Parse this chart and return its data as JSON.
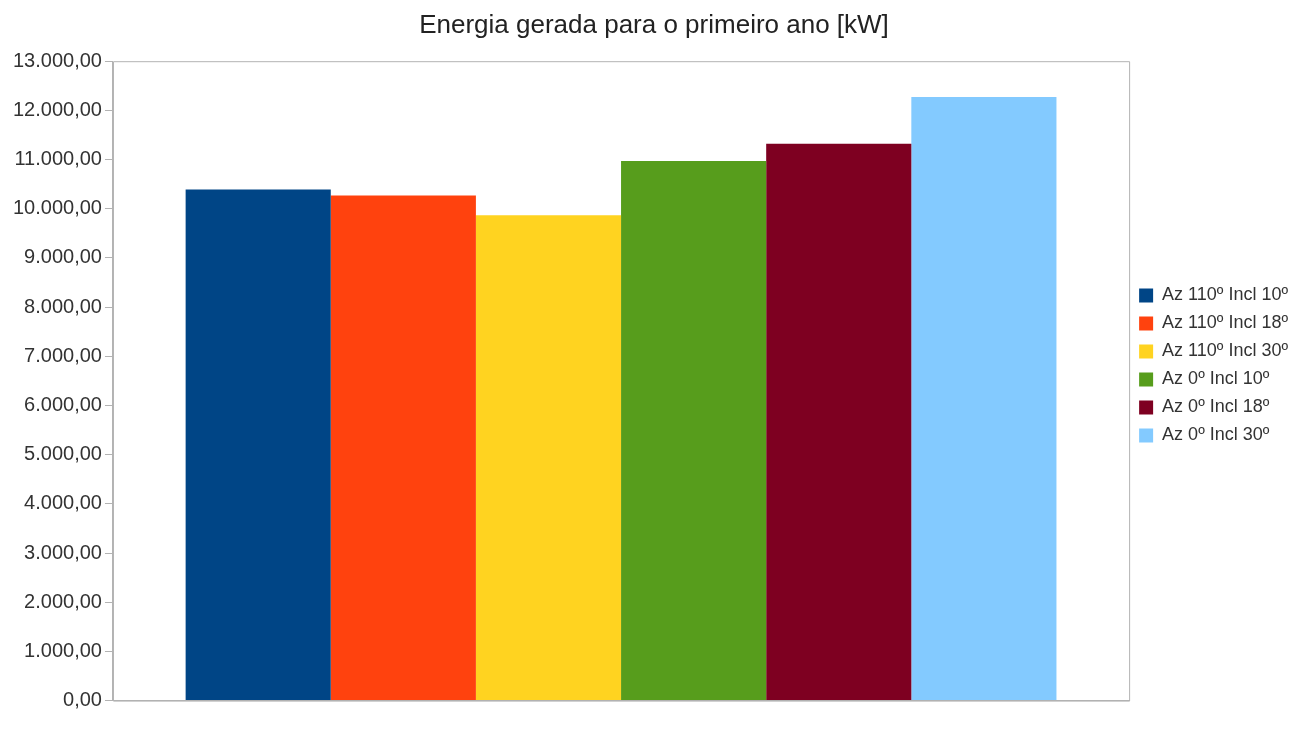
{
  "chart_data": {
    "type": "bar",
    "title": "Energia gerada para o primeiro ano [kW]",
    "categories": [
      null
    ],
    "series": [
      {
        "name": "Az 110º Incl 10º",
        "color": "#004586",
        "values": [
          10390
        ]
      },
      {
        "name": "Az 110º Incl 18º",
        "color": "#ff420e",
        "values": [
          10270
        ]
      },
      {
        "name": "Az 110º Incl 30º",
        "color": "#ffd320",
        "values": [
          9870
        ]
      },
      {
        "name": "Az 0º Incl 10º",
        "color": "#579d1c",
        "values": [
          10970
        ]
      },
      {
        "name": "Az 0º Incl 18º",
        "color": "#7e0021",
        "values": [
          11320
        ]
      },
      {
        "name": "Az 0º Incl 30º",
        "color": "#83caff",
        "values": [
          12270
        ]
      }
    ],
    "ylim": [
      0,
      13000
    ],
    "yticks": [
      {
        "value": 0,
        "label": "0,00"
      },
      {
        "value": 1000,
        "label": "1.000,00"
      },
      {
        "value": 2000,
        "label": "2.000,00"
      },
      {
        "value": 3000,
        "label": "3.000,00"
      },
      {
        "value": 4000,
        "label": "4.000,00"
      },
      {
        "value": 5000,
        "label": "5.000,00"
      },
      {
        "value": 6000,
        "label": "6.000,00"
      },
      {
        "value": 7000,
        "label": "7.000,00"
      },
      {
        "value": 8000,
        "label": "8.000,00"
      },
      {
        "value": 9000,
        "label": "9.000,00"
      },
      {
        "value": 10000,
        "label": "10.000,00"
      },
      {
        "value": 11000,
        "label": "11.000,00"
      },
      {
        "value": 12000,
        "label": "12.000,00"
      },
      {
        "value": 13000,
        "label": "13.000,00"
      }
    ],
    "grid": false,
    "legend": "right"
  }
}
